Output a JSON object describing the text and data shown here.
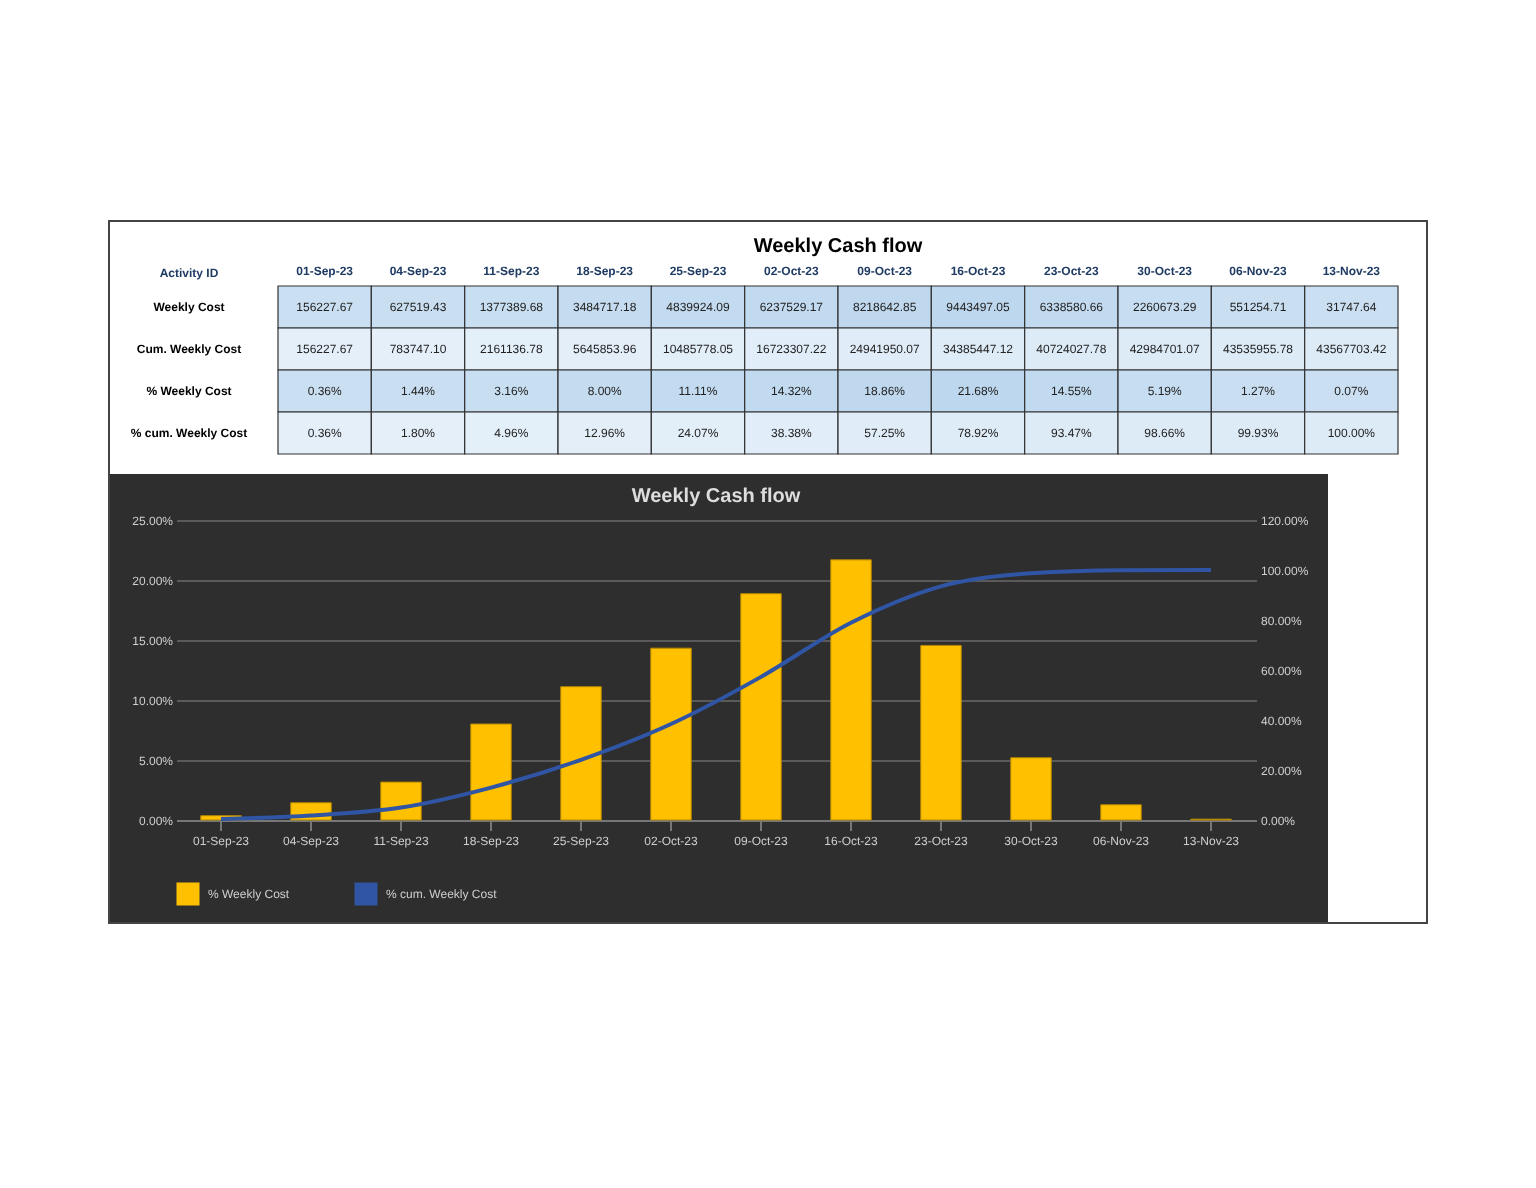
{
  "chart_data": [
    {
      "type": "heatmap",
      "title": "Weekly Cash flow",
      "ylabel": "Activity ID",
      "categories": [
        "01-Sep-23",
        "04-Sep-23",
        "11-Sep-23",
        "18-Sep-23",
        "25-Sep-23",
        "02-Oct-23",
        "09-Oct-23",
        "16-Oct-23",
        "23-Oct-23",
        "30-Oct-23",
        "06-Nov-23",
        "13-Nov-23"
      ],
      "y_categories": [
        "Weekly Cost",
        "Cum. Weekly Cost",
        "% Weekly Cost",
        "% cum. Weekly Cost"
      ],
      "cells": [
        [
          156227.67,
          627519.43,
          1377389.68,
          3484717.18,
          4839924.09,
          6237529.17,
          8218642.85,
          9443497.05,
          6338580.66,
          2260673.29,
          551254.71,
          31747.64
        ],
        [
          156227.67,
          783747.1,
          2161136.78,
          5645853.96,
          10485778.05,
          16723307.22,
          24941950.07,
          34385447.12,
          40724027.78,
          42984701.07,
          43535955.78,
          43567703.42
        ],
        [
          0.36,
          1.44,
          3.16,
          8.0,
          11.11,
          14.32,
          18.86,
          21.68,
          14.55,
          5.19,
          1.27,
          0.07
        ],
        [
          0.36,
          1.8,
          4.96,
          12.96,
          24.07,
          38.38,
          57.25,
          78.92,
          93.47,
          98.66,
          99.93,
          100.0
        ]
      ],
      "cell_labels": [
        [
          "156227.67",
          "627519.43",
          "1377389.68",
          "3484717.18",
          "4839924.09",
          "6237529.17",
          "8218642.85",
          "9443497.05",
          "6338580.66",
          "2260673.29",
          "551254.71",
          "31747.64"
        ],
        [
          "156227.67",
          "783747.10",
          "2161136.78",
          "5645853.96",
          "10485778.05",
          "16723307.22",
          "24941950.07",
          "34385447.12",
          "40724027.78",
          "42984701.07",
          "43535955.78",
          "43567703.42"
        ],
        [
          "0.36%",
          "1.44%",
          "3.16%",
          "8.00%",
          "11.11%",
          "14.32%",
          "18.86%",
          "21.68%",
          "14.55%",
          "5.19%",
          "1.27%",
          "0.07%"
        ],
        [
          "0.36%",
          "1.80%",
          "4.96%",
          "12.96%",
          "24.07%",
          "38.38%",
          "57.25%",
          "78.92%",
          "93.47%",
          "98.66%",
          "99.93%",
          "100.00%"
        ]
      ]
    },
    {
      "type": "bar",
      "title": "Weekly Cash flow",
      "categories": [
        "01-Sep-23",
        "04-Sep-23",
        "11-Sep-23",
        "18-Sep-23",
        "25-Sep-23",
        "02-Oct-23",
        "09-Oct-23",
        "16-Oct-23",
        "23-Oct-23",
        "30-Oct-23",
        "06-Nov-23",
        "13-Nov-23"
      ],
      "series": [
        {
          "name": "% Weekly Cost",
          "color": "#ffc000",
          "values": [
            0.36,
            1.44,
            3.16,
            8.0,
            11.11,
            14.32,
            18.86,
            21.68,
            14.55,
            5.19,
            1.27,
            0.07
          ]
        },
        {
          "name": "% cum. Weekly Cost",
          "type": "line",
          "axis": "y2",
          "color": "#2f55a4",
          "values": [
            0.36,
            1.8,
            4.96,
            12.96,
            24.07,
            38.38,
            57.25,
            78.92,
            93.47,
            98.66,
            99.93,
            100.0
          ]
        }
      ],
      "ylim": [
        0,
        25
      ],
      "yticks": [
        {
          "value": 0,
          "label": "0.00%"
        },
        {
          "value": 5,
          "label": "5.00%"
        },
        {
          "value": 10,
          "label": "10.00%"
        },
        {
          "value": 15,
          "label": "15.00%"
        },
        {
          "value": 20,
          "label": "20.00%"
        },
        {
          "value": 25,
          "label": "25.00%"
        }
      ],
      "y2lim": [
        0,
        120
      ],
      "y2ticks": [
        {
          "value": 0,
          "label": "0.00%"
        },
        {
          "value": 20,
          "label": "20.00%"
        },
        {
          "value": 40,
          "label": "40.00%"
        },
        {
          "value": 60,
          "label": "60.00%"
        },
        {
          "value": 80,
          "label": "80.00%"
        },
        {
          "value": 100,
          "label": "100.00%"
        },
        {
          "value": 120,
          "label": "120.00%"
        }
      ],
      "grid": "y",
      "legend": "bottom"
    }
  ]
}
